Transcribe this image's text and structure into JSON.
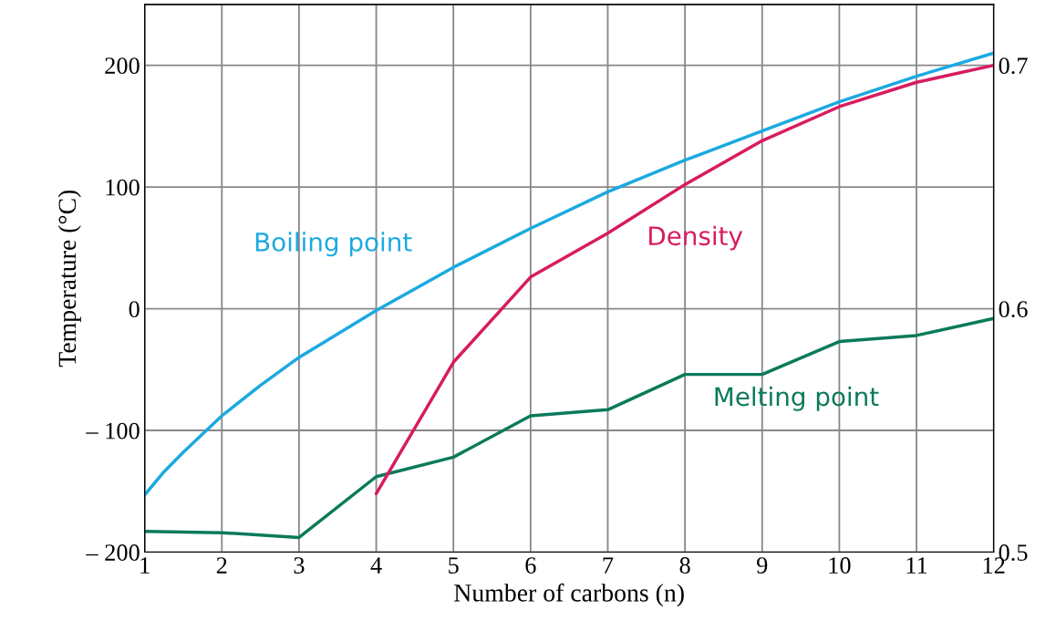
{
  "chart_data": {
    "type": "line",
    "xlabel": "Number of carbons (n)",
    "ylabel": "Temperature (°C)",
    "xlim": [
      1,
      12
    ],
    "xticks": [
      1,
      2,
      3,
      4,
      5,
      6,
      7,
      8,
      9,
      10,
      11,
      12
    ],
    "ylim": [
      -200,
      250
    ],
    "yticks": [
      {
        "value": -200,
        "label": "– 200"
      },
      {
        "value": -100,
        "label": "– 100"
      },
      0,
      100,
      200
    ],
    "y2lim": [
      0.5,
      0.725
    ],
    "y2ticks": [
      0.5,
      0.6,
      0.7
    ],
    "grid": true,
    "legend": false,
    "marker": "none",
    "line_style": "solid",
    "series": [
      {
        "name": "Boiling point",
        "color": "#1ba9e0",
        "x": [
          1,
          1.25,
          1.5,
          2,
          2.5,
          3,
          4,
          5,
          6,
          7,
          8,
          9,
          10,
          11,
          12
        ],
        "values": [
          -153,
          -134,
          -118,
          -88,
          -63,
          -40,
          -1.5,
          34,
          66,
          96,
          122,
          146,
          170,
          191,
          210
        ]
      },
      {
        "name": "Density",
        "color": "#d81b60",
        "axis": "y2",
        "x": [
          4,
          5,
          6,
          7,
          8,
          9,
          10,
          11,
          12
        ],
        "values": [
          0.524,
          0.578,
          0.613,
          0.631,
          0.651,
          0.669,
          0.683,
          0.693,
          0.7
        ]
      },
      {
        "name": "Melting point",
        "color": "#0a7a5a",
        "x": [
          1,
          2,
          3,
          4,
          5,
          6,
          7,
          8,
          9,
          10,
          11,
          12
        ],
        "values": [
          -183,
          -184,
          -188,
          -138,
          -122,
          -88,
          -83,
          -54,
          -54,
          -27,
          -22,
          -8
        ]
      }
    ]
  }
}
